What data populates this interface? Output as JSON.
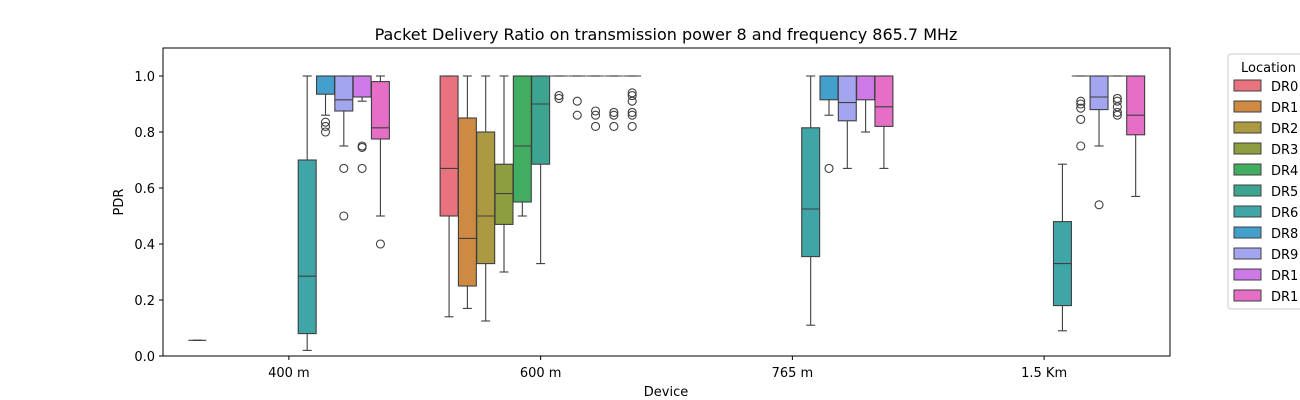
{
  "chart_data": {
    "type": "box",
    "title": "Packet Delivery Ratio on transmission power 8 and frequency 865.7 MHz",
    "xlabel": "Device",
    "ylabel": "PDR",
    "categories": [
      "400 m",
      "600 m",
      "765 m",
      "1.5 Km"
    ],
    "ylim": [
      0,
      1.1
    ],
    "yticks": [
      "0.0",
      "0.2",
      "0.4",
      "0.6",
      "0.8",
      "1.0"
    ],
    "grid": false,
    "legend": {
      "title": "Location",
      "placement": "outside-right",
      "entries": [
        "DR0",
        "DR1",
        "DR2",
        "DR3",
        "DR4",
        "DR5",
        "DR6",
        "DR8",
        "DR9",
        "DR1",
        "DR1"
      ]
    },
    "series": [
      {
        "name": "DR0",
        "color": "#e8737f",
        "boxes": [
          {
            "category": "400 m",
            "whislo": 0.056,
            "q1": 0.056,
            "med": 0.056,
            "q3": 0.056,
            "whishi": 0.056,
            "fliers": []
          },
          {
            "category": "600 m",
            "whislo": 0.14,
            "q1": 0.5,
            "med": 0.67,
            "q3": 1.0,
            "whishi": 1.0,
            "fliers": []
          },
          null,
          null
        ]
      },
      {
        "name": "DR1",
        "color": "#ce8a43",
        "boxes": [
          null,
          {
            "category": "600 m",
            "whislo": 0.17,
            "q1": 0.25,
            "med": 0.42,
            "q3": 0.85,
            "whishi": 1.0,
            "fliers": []
          },
          null,
          null
        ]
      },
      {
        "name": "DR2",
        "color": "#ab9a41",
        "boxes": [
          null,
          {
            "category": "600 m",
            "whislo": 0.125,
            "q1": 0.33,
            "med": 0.5,
            "q3": 0.8,
            "whishi": 1.0,
            "fliers": []
          },
          null,
          null
        ]
      },
      {
        "name": "DR3",
        "color": "#8d9e40",
        "boxes": [
          null,
          {
            "category": "600 m",
            "whislo": 0.3,
            "q1": 0.47,
            "med": 0.58,
            "q3": 0.685,
            "whishi": 1.0,
            "fliers": []
          },
          null,
          null
        ]
      },
      {
        "name": "DR4",
        "color": "#41ad60",
        "boxes": [
          null,
          {
            "category": "600 m",
            "whislo": 0.5,
            "q1": 0.55,
            "med": 0.75,
            "q3": 1.0,
            "whishi": 1.0,
            "fliers": []
          },
          null,
          null
        ]
      },
      {
        "name": "DR5",
        "color": "#3da58f",
        "boxes": [
          null,
          {
            "category": "600 m",
            "whislo": 0.33,
            "q1": 0.685,
            "med": 0.9,
            "q3": 1.0,
            "whishi": 1.0,
            "fliers": []
          },
          null,
          null
        ]
      },
      {
        "name": "DR6",
        "color": "#3fa5a7",
        "boxes": [
          {
            "category": "400 m",
            "whislo": 0.02,
            "q1": 0.08,
            "med": 0.285,
            "q3": 0.7,
            "whishi": 1.0,
            "fliers": []
          },
          {
            "category": "600 m",
            "whislo": 1.0,
            "q1": 1.0,
            "med": 1.0,
            "q3": 1.0,
            "whishi": 1.0,
            "fliers": [
              0.93,
              0.92
            ]
          },
          {
            "category": "765 m",
            "whislo": 0.11,
            "q1": 0.355,
            "med": 0.525,
            "q3": 0.815,
            "whishi": 1.0,
            "fliers": []
          },
          {
            "category": "1.5 Km",
            "whislo": 0.09,
            "q1": 0.18,
            "med": 0.33,
            "q3": 0.48,
            "whishi": 0.685,
            "fliers": []
          }
        ]
      },
      {
        "name": "DR8",
        "color": "#43a0cc",
        "boxes": [
          {
            "category": "400 m",
            "whislo": 0.86,
            "q1": 0.935,
            "med": 1.0,
            "q3": 1.0,
            "whishi": 1.0,
            "fliers": [
              0.835,
              0.82,
              0.8
            ]
          },
          {
            "category": "600 m",
            "whislo": 1.0,
            "q1": 1.0,
            "med": 1.0,
            "q3": 1.0,
            "whishi": 1.0,
            "fliers": [
              0.91,
              0.86
            ]
          },
          {
            "category": "765 m",
            "whislo": 0.86,
            "q1": 0.915,
            "med": 1.0,
            "q3": 1.0,
            "whishi": 1.0,
            "fliers": [
              0.67
            ]
          },
          {
            "category": "1.5 Km",
            "whislo": 1.0,
            "q1": 1.0,
            "med": 1.0,
            "q3": 1.0,
            "whishi": 1.0,
            "fliers": [
              0.91,
              0.9,
              0.885,
              0.845,
              0.75
            ]
          }
        ]
      },
      {
        "name": "DR9",
        "color": "#a3a6ee",
        "boxes": [
          {
            "category": "400 m",
            "whislo": 0.75,
            "q1": 0.875,
            "med": 0.915,
            "q3": 1.0,
            "whishi": 1.0,
            "fliers": [
              0.67,
              0.5
            ]
          },
          {
            "category": "600 m",
            "whislo": 1.0,
            "q1": 1.0,
            "med": 1.0,
            "q3": 1.0,
            "whishi": 1.0,
            "fliers": [
              0.875,
              0.86,
              0.82
            ]
          },
          {
            "category": "765 m",
            "whislo": 0.67,
            "q1": 0.84,
            "med": 0.905,
            "q3": 1.0,
            "whishi": 1.0,
            "fliers": []
          },
          {
            "category": "1.5 Km",
            "whislo": 0.75,
            "q1": 0.88,
            "med": 0.925,
            "q3": 1.0,
            "whishi": 1.0,
            "fliers": [
              0.54
            ]
          }
        ]
      },
      {
        "name": "DR1",
        "color": "#cd7ae8",
        "boxes": [
          {
            "category": "400 m",
            "whislo": 0.91,
            "q1": 0.925,
            "med": 1.0,
            "q3": 1.0,
            "whishi": 1.0,
            "fliers": [
              0.75,
              0.745,
              0.67
            ]
          },
          {
            "category": "600 m",
            "whislo": 1.0,
            "q1": 1.0,
            "med": 1.0,
            "q3": 1.0,
            "whishi": 1.0,
            "fliers": [
              0.87,
              0.86,
              0.82
            ]
          },
          {
            "category": "765 m",
            "whislo": 0.8,
            "q1": 0.915,
            "med": 1.0,
            "q3": 1.0,
            "whishi": 1.0,
            "fliers": []
          },
          {
            "category": "1.5 Km",
            "whislo": 1.0,
            "q1": 1.0,
            "med": 1.0,
            "q3": 1.0,
            "whishi": 1.0,
            "fliers": [
              0.92,
              0.91,
              0.89,
              0.87,
              0.86
            ]
          }
        ]
      },
      {
        "name": "DR1",
        "color": "#e56fc7",
        "boxes": [
          {
            "category": "400 m",
            "whislo": 0.5,
            "q1": 0.775,
            "med": 0.815,
            "q3": 0.98,
            "whishi": 1.0,
            "fliers": [
              0.4
            ]
          },
          {
            "category": "600 m",
            "whislo": 1.0,
            "q1": 1.0,
            "med": 1.0,
            "q3": 1.0,
            "whishi": 1.0,
            "fliers": [
              0.94,
              0.93,
              0.91,
              0.87,
              0.86,
              0.82
            ]
          },
          {
            "category": "765 m",
            "whislo": 0.67,
            "q1": 0.82,
            "med": 0.89,
            "q3": 1.0,
            "whishi": 1.0,
            "fliers": []
          },
          {
            "category": "1.5 Km",
            "whislo": 0.57,
            "q1": 0.79,
            "med": 0.86,
            "q3": 1.0,
            "whishi": 1.0,
            "fliers": []
          }
        ]
      }
    ]
  }
}
